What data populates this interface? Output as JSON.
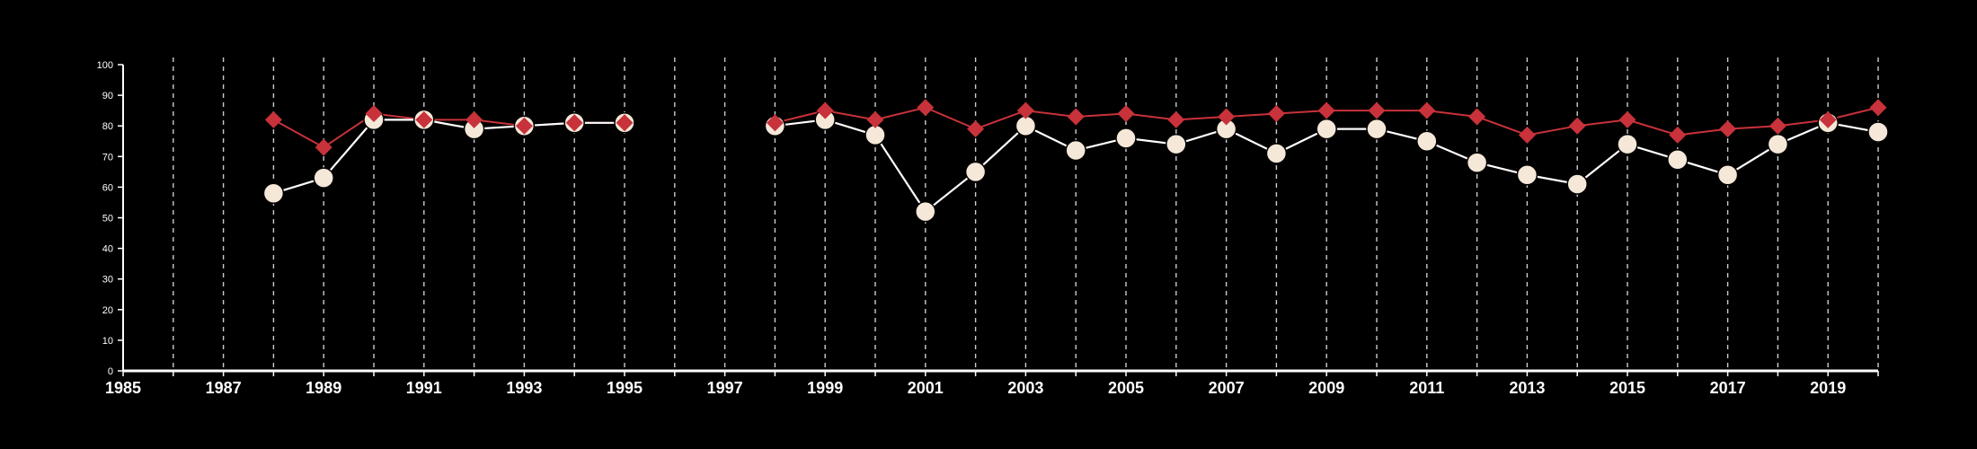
{
  "chart_data": {
    "type": "line",
    "title": "",
    "xlabel": "",
    "ylabel": "",
    "xlim": [
      1985,
      2020
    ],
    "ylim": [
      0,
      100
    ],
    "x_ticks": [
      1985,
      1987,
      1989,
      1991,
      1993,
      1995,
      1997,
      1999,
      2001,
      2003,
      2005,
      2007,
      2009,
      2011,
      2013,
      2015,
      2017,
      2019
    ],
    "y_ticks": [
      0,
      10,
      20,
      30,
      40,
      50,
      60,
      70,
      80,
      90,
      100
    ],
    "x_tick_labels": [
      "1985",
      "1987",
      "1989",
      "1991",
      "1993",
      "1995",
      "1997",
      "1999",
      "2001",
      "2003",
      "2005",
      "2007",
      "2009",
      "2011",
      "2013",
      "2015",
      "2017",
      "2019"
    ],
    "y_tick_labels": [
      "0",
      "10",
      "20",
      "30",
      "40",
      "50",
      "60",
      "70",
      "80",
      "90",
      "100"
    ],
    "vertical_grid": "dashed, every year",
    "legend": "none",
    "x": [
      1988,
      1989,
      1990,
      1991,
      1992,
      1993,
      1994,
      1995,
      1998,
      1999,
      2000,
      2001,
      2002,
      2003,
      2004,
      2005,
      2006,
      2007,
      2008,
      2009,
      2010,
      2011,
      2012,
      2013,
      2014,
      2015,
      2016,
      2017,
      2018,
      2019,
      2020
    ],
    "series": [
      {
        "color": "#f5e8d8",
        "marker": "circle",
        "values": [
          58,
          63,
          82,
          82,
          79,
          80,
          81,
          81,
          80,
          82,
          77,
          52,
          65,
          80,
          72,
          76,
          74,
          79,
          71,
          79,
          79,
          75,
          68,
          64,
          61,
          74,
          69,
          64,
          74,
          81,
          78
        ]
      },
      {
        "color": "#c8323a",
        "marker": "diamond",
        "values": [
          82,
          73,
          84,
          82,
          82,
          80,
          81,
          81,
          81,
          85,
          82,
          86,
          79,
          85,
          83,
          84,
          82,
          83,
          84,
          85,
          85,
          85,
          83,
          77,
          80,
          82,
          77,
          79,
          80,
          82,
          86
        ]
      }
    ]
  }
}
